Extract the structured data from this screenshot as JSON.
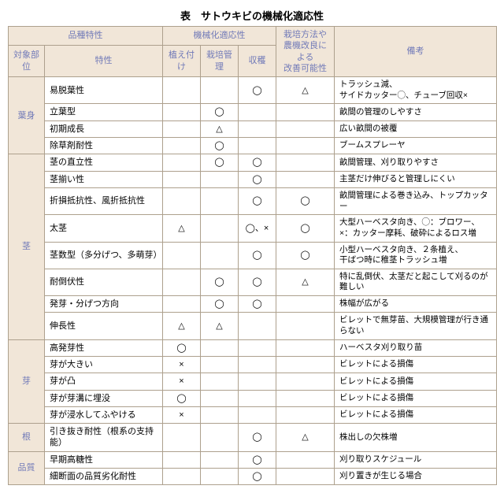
{
  "title": "表　サトウキビの機械化適応性",
  "header": {
    "varietyGroup": "品種特性",
    "mechGroup": "機械化適応性",
    "improve": "栽培方法や\n農機改良による\n改善可能性",
    "note": "備考",
    "part": "対象部位",
    "trait": "特性",
    "plant": "植え付け",
    "manage": "栽培管理",
    "harvest": "収穫"
  },
  "groups": [
    {
      "name": "葉身",
      "rows": [
        {
          "trait": "易脱葉性",
          "plant": "",
          "manage": "",
          "harvest": "◯",
          "improve": "△",
          "note": "トラッシュ減、\nサイドカッター◯、チューブ回収×"
        },
        {
          "trait": "立葉型",
          "plant": "",
          "manage": "◯",
          "harvest": "",
          "improve": "",
          "note": "畝間の管理のしやすさ"
        },
        {
          "trait": "初期成長",
          "plant": "",
          "manage": "△",
          "harvest": "",
          "improve": "",
          "note": "広い畝間の被覆"
        },
        {
          "trait": "除草剤耐性",
          "plant": "",
          "manage": "◯",
          "harvest": "",
          "improve": "",
          "note": "ブームスプレーヤ"
        }
      ]
    },
    {
      "name": "茎",
      "rows": [
        {
          "trait": "茎の直立性",
          "plant": "",
          "manage": "◯",
          "harvest": "◯",
          "improve": "",
          "note": "畝間管理、刈り取りやすさ"
        },
        {
          "trait": "茎揃い性",
          "plant": "",
          "manage": "",
          "harvest": "◯",
          "improve": "",
          "note": "主茎だけ伸びると管理しにくい"
        },
        {
          "trait": "折損抵抗性、風折抵抗性",
          "plant": "",
          "manage": "",
          "harvest": "◯",
          "improve": "◯",
          "note": "畝間管理による巻き込み、トップカッター"
        },
        {
          "trait": "太茎",
          "plant": "△",
          "manage": "",
          "harvest": "◯、×",
          "improve": "◯",
          "note": "大型ハーベスタ向き、◯：ブロワー、\n×：カッター摩耗、破砕によるロス増"
        },
        {
          "trait": "茎数型（多分げつ、多萌芽）",
          "plant": "",
          "manage": "",
          "harvest": "◯",
          "improve": "◯",
          "note": "小型ハーベスタ向き、２条植え、\n干ばつ時に稚茎トラッシュ増"
        },
        {
          "trait": "耐倒伏性",
          "plant": "",
          "manage": "◯",
          "harvest": "◯",
          "improve": "△",
          "note": "特に乱倒伏、太茎だと起こして刈るのが\n難しい"
        },
        {
          "trait": "発芽・分げつ方向",
          "plant": "",
          "manage": "◯",
          "harvest": "◯",
          "improve": "",
          "note": "株幅が広がる"
        },
        {
          "trait": "伸長性",
          "plant": "△",
          "manage": "△",
          "harvest": "",
          "improve": "",
          "note": "ビレットで無芽苗、大規模管理が行き通\nらない"
        }
      ]
    },
    {
      "name": "芽",
      "rows": [
        {
          "trait": "高発芽性",
          "plant": "◯",
          "manage": "",
          "harvest": "",
          "improve": "",
          "note": "ハーベスタ刈り取り苗"
        },
        {
          "trait": "芽が大きい",
          "plant": "×",
          "manage": "",
          "harvest": "",
          "improve": "",
          "note": "ビレットによる損傷"
        },
        {
          "trait": "芽が凸",
          "plant": "×",
          "manage": "",
          "harvest": "",
          "improve": "",
          "note": "ビレットによる損傷"
        },
        {
          "trait": "芽が芽溝に埋没",
          "plant": "◯",
          "manage": "",
          "harvest": "",
          "improve": "",
          "note": "ビレットによる損傷"
        },
        {
          "trait": "芽が浸水してふやける",
          "plant": "×",
          "manage": "",
          "harvest": "",
          "improve": "",
          "note": "ビレットによる損傷"
        }
      ]
    },
    {
      "name": "根",
      "rows": [
        {
          "trait": "引き抜き耐性（根系の支持能）",
          "plant": "",
          "manage": "",
          "harvest": "◯",
          "improve": "△",
          "note": "株出しの欠株増"
        }
      ]
    },
    {
      "name": "品質",
      "rows": [
        {
          "trait": "早期高糖性",
          "plant": "",
          "manage": "",
          "harvest": "◯",
          "improve": "",
          "note": "刈り取りスケジュール"
        },
        {
          "trait": "細断面の品質劣化耐性",
          "plant": "",
          "manage": "",
          "harvest": "◯",
          "improve": "",
          "note": "刈り置きが生じる場合"
        }
      ]
    }
  ]
}
